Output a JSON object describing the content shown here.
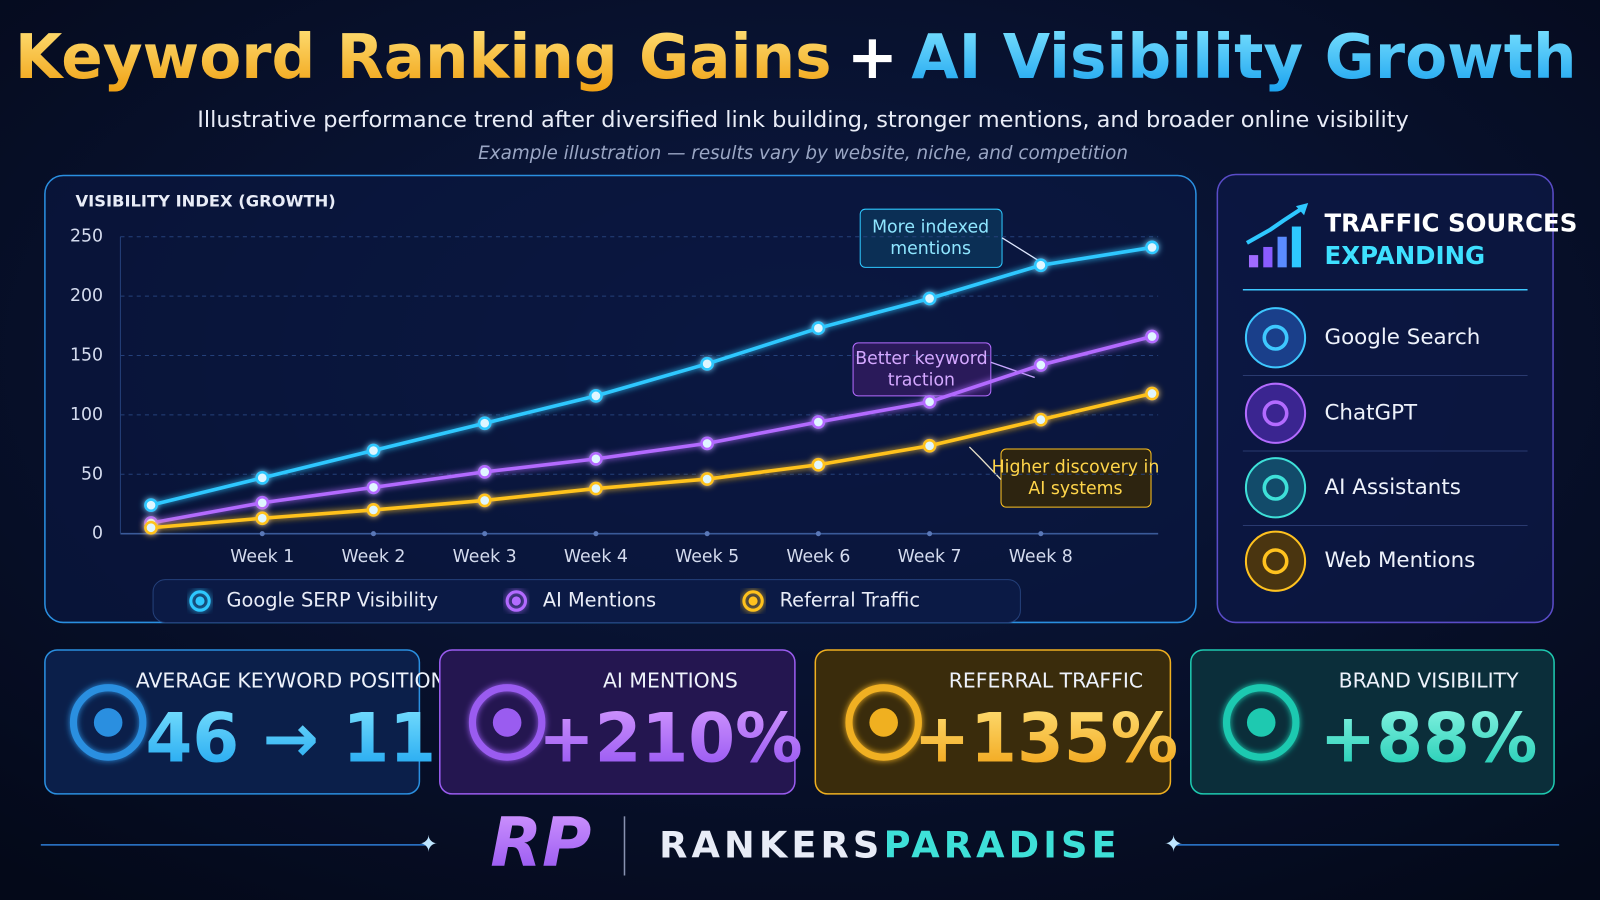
{
  "header": {
    "title_left": "Keyword Ranking Gains",
    "title_plus": "+",
    "title_right": "AI Visibility Growth",
    "subtitle": "Illustrative performance trend after diversified link building, stronger mentions, and broader online visibility",
    "note": "Example illustration — results vary by website, niche, and competition"
  },
  "chart_data": {
    "type": "line",
    "ylabel": "VISIBILITY INDEX (GROWTH)",
    "categories": [
      null,
      "Week 1",
      "Week 2",
      "Week 3",
      "Week 4",
      "Week 5",
      "Week 6",
      "Week 7",
      "Week 8",
      null
    ],
    "series": [
      {
        "name": "Google SERP Visibility",
        "color": "#2ec8ff",
        "values": [
          24,
          47,
          70,
          93,
          116,
          143,
          173,
          198,
          226,
          241
        ]
      },
      {
        "name": "AI Mentions",
        "color": "#b36bff",
        "values": [
          9,
          26,
          39,
          52,
          63,
          76,
          94,
          111,
          142,
          166
        ]
      },
      {
        "name": "Referral Traffic",
        "color": "#ffc21f",
        "values": [
          5,
          13,
          20,
          28,
          38,
          46,
          58,
          74,
          96,
          118
        ]
      }
    ],
    "ylim": [
      0,
      250
    ],
    "yticks": [
      0,
      50,
      100,
      150,
      200,
      250
    ],
    "grid": true,
    "annotations": [
      "More indexed mentions",
      "Better keyword traction",
      "Higher discovery in AI systems"
    ]
  },
  "sources": {
    "title_top": "TRAFFIC SOURCES",
    "title_bottom": "EXPANDING",
    "items": [
      "Google Search",
      "ChatGPT",
      "AI Assistants",
      "Web Mentions"
    ]
  },
  "cards": [
    {
      "label": "AVERAGE KEYWORD POSITION",
      "value": "46 → 11"
    },
    {
      "label": "AI MENTIONS",
      "value": "+210%"
    },
    {
      "label": "REFERRAL TRAFFIC",
      "value": "+135%"
    },
    {
      "label": "BRAND VISIBILITY",
      "value": "+88%"
    }
  ],
  "footer": {
    "logo": "RP",
    "brand_left": "RANKERS",
    "brand_right": "PARADISE"
  }
}
